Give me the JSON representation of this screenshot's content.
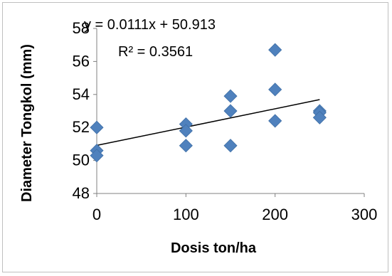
{
  "chart_data": {
    "type": "scatter",
    "title": "",
    "xlabel": "Dosis ton/ha",
    "ylabel": "Diameter Tongkol (mm)",
    "xlim": [
      0,
      300
    ],
    "ylim": [
      48,
      58
    ],
    "x_ticks": [
      "0",
      "100",
      "200",
      "300"
    ],
    "y_ticks": [
      "48",
      "50",
      "52",
      "54",
      "56",
      "58"
    ],
    "grid": false,
    "legend": "none",
    "marker": "diamond",
    "point_color": "#4f81bd",
    "trendline_color": "#000000",
    "series": [
      {
        "points": [
          [
            0,
            52.0
          ],
          [
            0,
            50.6
          ],
          [
            0,
            50.3
          ],
          [
            100,
            52.2
          ],
          [
            100,
            51.8
          ],
          [
            100,
            50.9
          ],
          [
            150,
            53.9
          ],
          [
            150,
            53.0
          ],
          [
            150,
            50.9
          ],
          [
            200,
            56.7
          ],
          [
            200,
            54.3
          ],
          [
            200,
            52.4
          ],
          [
            250,
            53.0
          ],
          [
            250,
            52.9
          ],
          [
            250,
            52.6
          ]
        ]
      }
    ],
    "trendline": {
      "slope": 0.0111,
      "intercept": 50.913,
      "equation": "y = 0.0111x + 50.913",
      "r2": "R² = 0.3561"
    }
  }
}
